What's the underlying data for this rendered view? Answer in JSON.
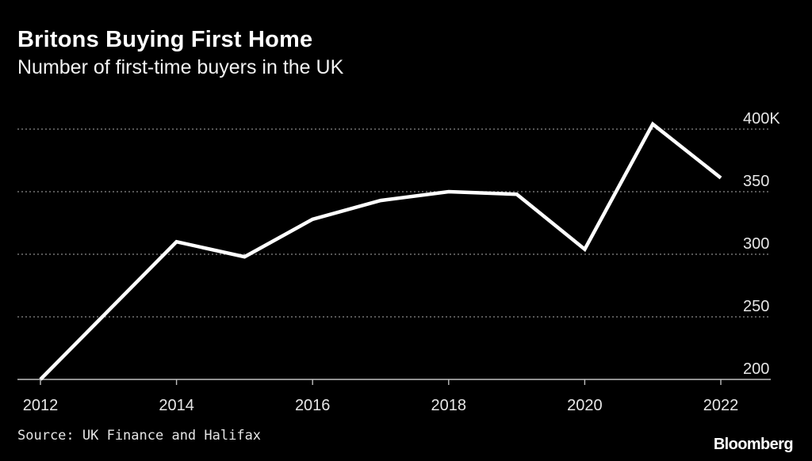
{
  "chart_data": {
    "type": "line",
    "title": "Britons Buying First Home",
    "subtitle": "Number of first-time buyers in the UK",
    "xlabel": "",
    "ylabel": "",
    "x": [
      2012,
      2013,
      2014,
      2015,
      2016,
      2017,
      2018,
      2019,
      2020,
      2021,
      2022
    ],
    "series": [
      {
        "name": "First-time buyers",
        "values": [
          200,
          255,
          310,
          298,
          328,
          343,
          350,
          348,
          304,
          404,
          361
        ]
      }
    ],
    "xlim": [
      2012,
      2022
    ],
    "ylim": [
      200,
      400
    ],
    "x_ticks": [
      2012,
      2014,
      2016,
      2018,
      2020,
      2022
    ],
    "x_tick_labels": [
      "2012",
      "2014",
      "2016",
      "2018",
      "2020",
      "2022"
    ],
    "y_ticks": [
      200,
      250,
      300,
      350,
      400
    ],
    "y_tick_labels": [
      "200",
      "250",
      "300",
      "350",
      "400K"
    ],
    "grid": true,
    "line_color": "#ffffff",
    "grid_color": "#8a8a8a",
    "background_color": "#000000"
  },
  "footer": {
    "source": "Source: UK Finance and Halifax",
    "brand": "Bloomberg"
  }
}
